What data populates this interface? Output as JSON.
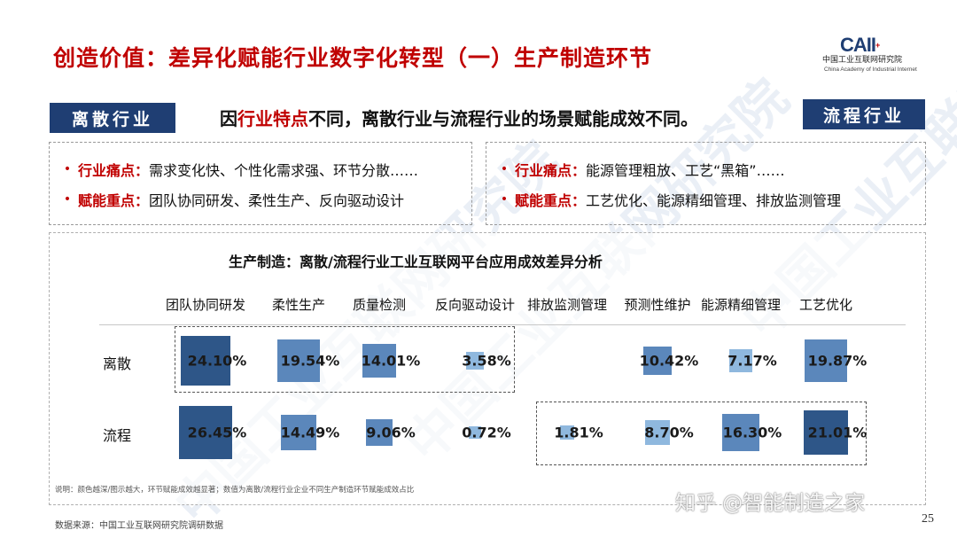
{
  "title": "创造价值：差异化赋能行业数字化转型（一）生产制造环节",
  "logo": {
    "mark": "CAII",
    "cn": "中国工业互联网研究院",
    "en": "China Academy of Industrial Internet"
  },
  "tags": {
    "left": "离散行业",
    "right": "流程行业"
  },
  "headline": {
    "prefix": "因",
    "highlight": "行业特点",
    "suffix": "不同，离散行业与流程行业的场景赋能成效不同。"
  },
  "left_box": [
    {
      "key": "行业痛点：",
      "value": "需求变化快、个性化需求强、环节分散……"
    },
    {
      "key": "赋能重点：",
      "value": "团队协同研发、柔性生产、反向驱动设计"
    }
  ],
  "right_box": [
    {
      "key": "行业痛点：",
      "value": "能源管理粗放、工艺“黑箱”……"
    },
    {
      "key": "赋能重点：",
      "value": "工艺优化、能源精细管理、排放监测管理"
    }
  ],
  "table_title": "生产制造：离散/流程行业工业互联网平台应用成效差异分析",
  "columns": [
    "团队协同研发",
    "柔性生产",
    "质量检测",
    "反向驱动设计",
    "排放监测管理",
    "预测性维护",
    "能源精细管理",
    "工艺优化"
  ],
  "rows": [
    {
      "label": "离散",
      "values": [
        24.1,
        19.54,
        14.01,
        3.58,
        null,
        10.42,
        7.17,
        19.87
      ],
      "display": [
        "24.10%",
        "19.54%",
        "14.01%",
        "3.58%",
        "",
        "10.42%",
        "7.17%",
        "19.87%"
      ]
    },
    {
      "label": "流程",
      "values": [
        26.45,
        14.49,
        9.06,
        0.72,
        1.81,
        8.7,
        16.3,
        21.01
      ],
      "display": [
        "26.45%",
        "14.49%",
        "9.06%",
        "0.72%",
        "1.81%",
        "8.70%",
        "16.30%",
        "21.01%"
      ]
    }
  ],
  "colors": {
    "dark": "#2e5688",
    "mid": "#5b87bb",
    "light": "#8fb8de",
    "accent_red": "#c00000",
    "navy": "#1f3e73"
  },
  "note": "说明：颜色越深/图示越大，环节赋能成效越显著；数值为离散/流程行业企业不同生产制造环节赋能成效占比",
  "source": "数据来源：中国工业互联网研究院调研数据",
  "corner_watermark": "知乎 @智能制造之家",
  "watermark_text": "中国工业互联网研究院",
  "page_number": "25"
}
